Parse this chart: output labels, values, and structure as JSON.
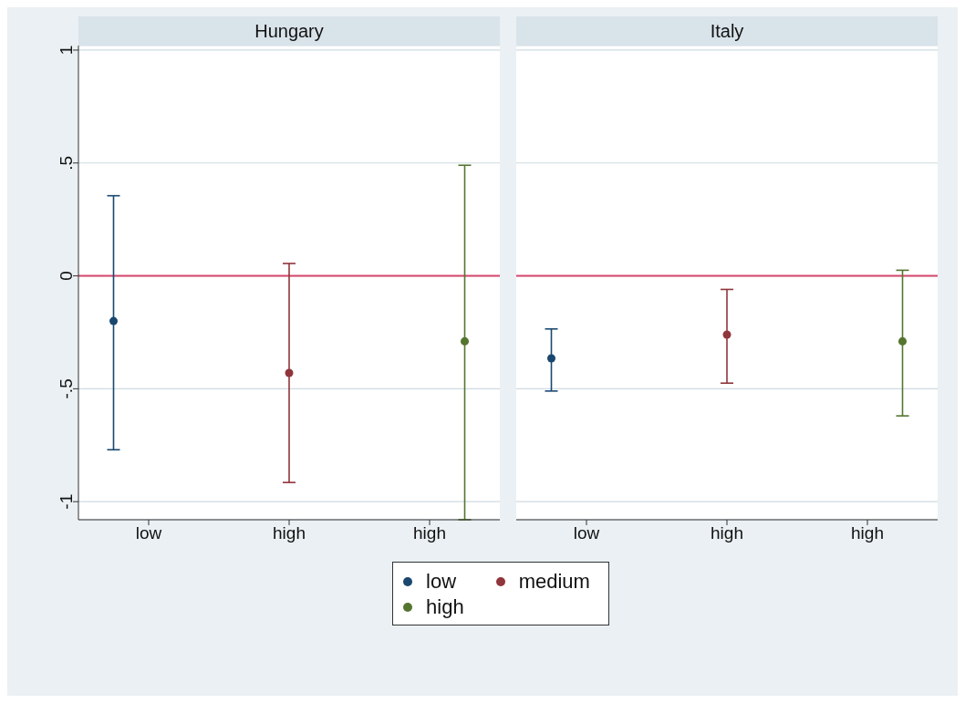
{
  "chart_data": [
    {
      "type": "scatter",
      "title": "Hungary",
      "categories": [
        "low",
        "high",
        "high"
      ],
      "ylim": [
        -1.08,
        1.02
      ],
      "yticks": [
        {
          "value": -1,
          "label": "-1"
        },
        {
          "value": -0.5,
          "label": "-.5"
        },
        {
          "value": 0,
          "label": "0"
        },
        {
          "value": 0.5,
          "label": ".5"
        },
        {
          "value": 1,
          "label": "1"
        }
      ],
      "grid": "y",
      "marker": "circle",
      "legend": "bottom",
      "ref_lines": [
        {
          "axis": "y",
          "value": 0,
          "color": "#d6456a"
        }
      ],
      "series": [
        {
          "name": "low",
          "color": "#1a476f",
          "values": [
            -0.2,
            null,
            null
          ],
          "errors": [
            [
              -0.77,
              0.355
            ],
            null,
            null
          ]
        },
        {
          "name": "medium",
          "color": "#90353b",
          "values": [
            null,
            -0.43,
            null
          ],
          "errors": [
            null,
            [
              -0.915,
              0.055
            ],
            null
          ]
        },
        {
          "name": "high",
          "color": "#55752f",
          "values": [
            null,
            null,
            -0.29
          ],
          "errors": [
            null,
            null,
            [
              -1.08,
              0.49
            ]
          ]
        }
      ]
    },
    {
      "type": "scatter",
      "title": "Italy",
      "categories": [
        "low",
        "high",
        "high"
      ],
      "ylim": [
        -1.08,
        1.02
      ],
      "yticks": [
        {
          "value": -1,
          "label": null
        },
        {
          "value": -0.5,
          "label": null
        },
        {
          "value": 0,
          "label": null
        },
        {
          "value": 0.5,
          "label": null
        },
        {
          "value": 1,
          "label": null
        }
      ],
      "grid": "y",
      "marker": "circle",
      "tick_labels": "x",
      "ref_lines": [
        {
          "axis": "y",
          "value": 0,
          "color": "#d6456a"
        }
      ],
      "series": [
        {
          "name": "low",
          "color": "#1a476f",
          "values": [
            -0.365,
            null,
            null
          ],
          "errors": [
            [
              -0.51,
              -0.235
            ],
            null,
            null
          ]
        },
        {
          "name": "medium",
          "color": "#90353b",
          "values": [
            null,
            -0.26,
            null
          ],
          "errors": [
            null,
            [
              -0.475,
              -0.06
            ],
            null
          ]
        },
        {
          "name": "high",
          "color": "#55752f",
          "values": [
            null,
            null,
            -0.29
          ],
          "errors": [
            null,
            null,
            [
              -0.62,
              0.025
            ]
          ]
        }
      ]
    }
  ]
}
